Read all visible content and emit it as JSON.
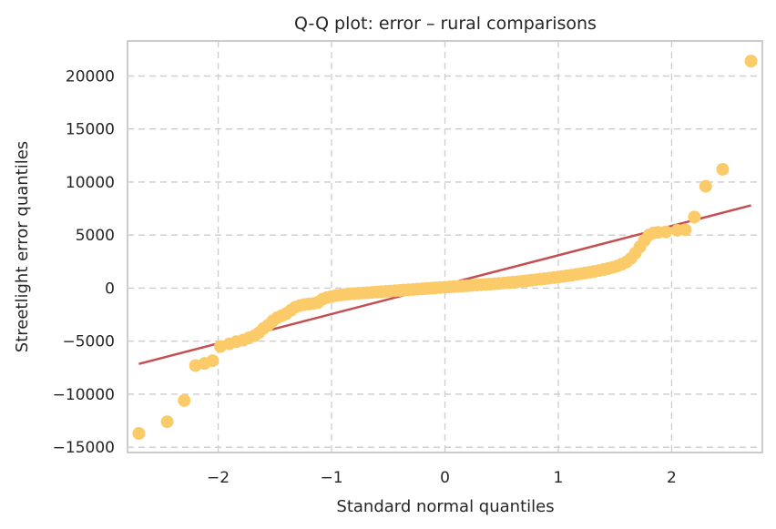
{
  "chart_data": {
    "type": "scatter",
    "title": "Q-Q plot: error – rural comparisons",
    "xlabel": "Standard normal quantiles",
    "ylabel": "Streetlight error quantiles",
    "xlim": [
      -2.8,
      2.8
    ],
    "ylim": [
      -15500,
      23300
    ],
    "x_ticks": [
      -2,
      -1,
      0,
      1,
      2
    ],
    "x_tick_labels": [
      "−2",
      "−1",
      "0",
      "1",
      "2"
    ],
    "y_ticks": [
      -15000,
      -10000,
      -5000,
      0,
      5000,
      10000,
      15000,
      20000
    ],
    "y_tick_labels": [
      "−15000",
      "−10000",
      "−5000",
      "0",
      "5000",
      "10000",
      "15000",
      "20000"
    ],
    "grid": true,
    "colors": {
      "points": "#fbcb6a",
      "fit_line": "#c44e52"
    },
    "fit_line": {
      "x": [
        -2.7,
        2.7
      ],
      "y": [
        -7150,
        7800
      ]
    },
    "points": [
      [
        -2.7,
        -13700
      ],
      [
        -2.45,
        -12600
      ],
      [
        -2.3,
        -10600
      ],
      [
        -2.2,
        -7300
      ],
      [
        -2.12,
        -7100
      ],
      [
        -2.05,
        -6850
      ],
      [
        -1.98,
        -5500
      ],
      [
        -1.9,
        -5250
      ],
      [
        -1.84,
        -5050
      ],
      [
        -1.78,
        -4900
      ],
      [
        -1.73,
        -4700
      ],
      [
        -1.68,
        -4500
      ],
      [
        -1.64,
        -4200
      ],
      [
        -1.6,
        -3800
      ],
      [
        -1.56,
        -3500
      ],
      [
        -1.52,
        -3100
      ],
      [
        -1.48,
        -2800
      ],
      [
        -1.44,
        -2600
      ],
      [
        -1.4,
        -2400
      ],
      [
        -1.36,
        -2100
      ],
      [
        -1.32,
        -1800
      ],
      [
        -1.28,
        -1650
      ],
      [
        -1.24,
        -1550
      ],
      [
        -1.2,
        -1500
      ],
      [
        -1.16,
        -1450
      ],
      [
        -1.12,
        -1350
      ],
      [
        -1.08,
        -1050
      ],
      [
        -1.04,
        -900
      ],
      [
        -1.0,
        -800
      ],
      [
        -0.96,
        -700
      ],
      [
        -0.92,
        -650
      ],
      [
        -0.88,
        -600
      ],
      [
        -0.84,
        -560
      ],
      [
        -0.8,
        -520
      ],
      [
        -0.76,
        -490
      ],
      [
        -0.72,
        -460
      ],
      [
        -0.68,
        -430
      ],
      [
        -0.64,
        -400
      ],
      [
        -0.6,
        -370
      ],
      [
        -0.56,
        -340
      ],
      [
        -0.52,
        -310
      ],
      [
        -0.48,
        -280
      ],
      [
        -0.44,
        -250
      ],
      [
        -0.4,
        -220
      ],
      [
        -0.36,
        -190
      ],
      [
        -0.32,
        -160
      ],
      [
        -0.28,
        -130
      ],
      [
        -0.24,
        -100
      ],
      [
        -0.2,
        -70
      ],
      [
        -0.16,
        -40
      ],
      [
        -0.12,
        -10
      ],
      [
        -0.08,
        20
      ],
      [
        -0.04,
        50
      ],
      [
        0.0,
        80
      ],
      [
        0.04,
        110
      ],
      [
        0.08,
        140
      ],
      [
        0.12,
        170
      ],
      [
        0.16,
        200
      ],
      [
        0.2,
        230
      ],
      [
        0.24,
        260
      ],
      [
        0.28,
        290
      ],
      [
        0.32,
        320
      ],
      [
        0.36,
        350
      ],
      [
        0.4,
        380
      ],
      [
        0.44,
        410
      ],
      [
        0.48,
        440
      ],
      [
        0.52,
        480
      ],
      [
        0.56,
        520
      ],
      [
        0.6,
        560
      ],
      [
        0.64,
        600
      ],
      [
        0.68,
        640
      ],
      [
        0.72,
        690
      ],
      [
        0.76,
        740
      ],
      [
        0.8,
        790
      ],
      [
        0.84,
        840
      ],
      [
        0.88,
        890
      ],
      [
        0.92,
        940
      ],
      [
        0.96,
        990
      ],
      [
        1.0,
        1040
      ],
      [
        1.04,
        1100
      ],
      [
        1.08,
        1160
      ],
      [
        1.12,
        1220
      ],
      [
        1.16,
        1290
      ],
      [
        1.2,
        1360
      ],
      [
        1.24,
        1430
      ],
      [
        1.28,
        1500
      ],
      [
        1.32,
        1580
      ],
      [
        1.36,
        1660
      ],
      [
        1.4,
        1750
      ],
      [
        1.44,
        1850
      ],
      [
        1.48,
        1960
      ],
      [
        1.52,
        2080
      ],
      [
        1.56,
        2250
      ],
      [
        1.6,
        2450
      ],
      [
        1.64,
        2800
      ],
      [
        1.68,
        3300
      ],
      [
        1.72,
        3900
      ],
      [
        1.76,
        4500
      ],
      [
        1.8,
        5000
      ],
      [
        1.84,
        5200
      ],
      [
        1.88,
        5250
      ],
      [
        1.95,
        5300
      ],
      [
        2.05,
        5450
      ],
      [
        2.12,
        5500
      ],
      [
        2.2,
        6700
      ],
      [
        2.3,
        9600
      ],
      [
        2.45,
        11200
      ],
      [
        2.7,
        21400
      ]
    ]
  }
}
